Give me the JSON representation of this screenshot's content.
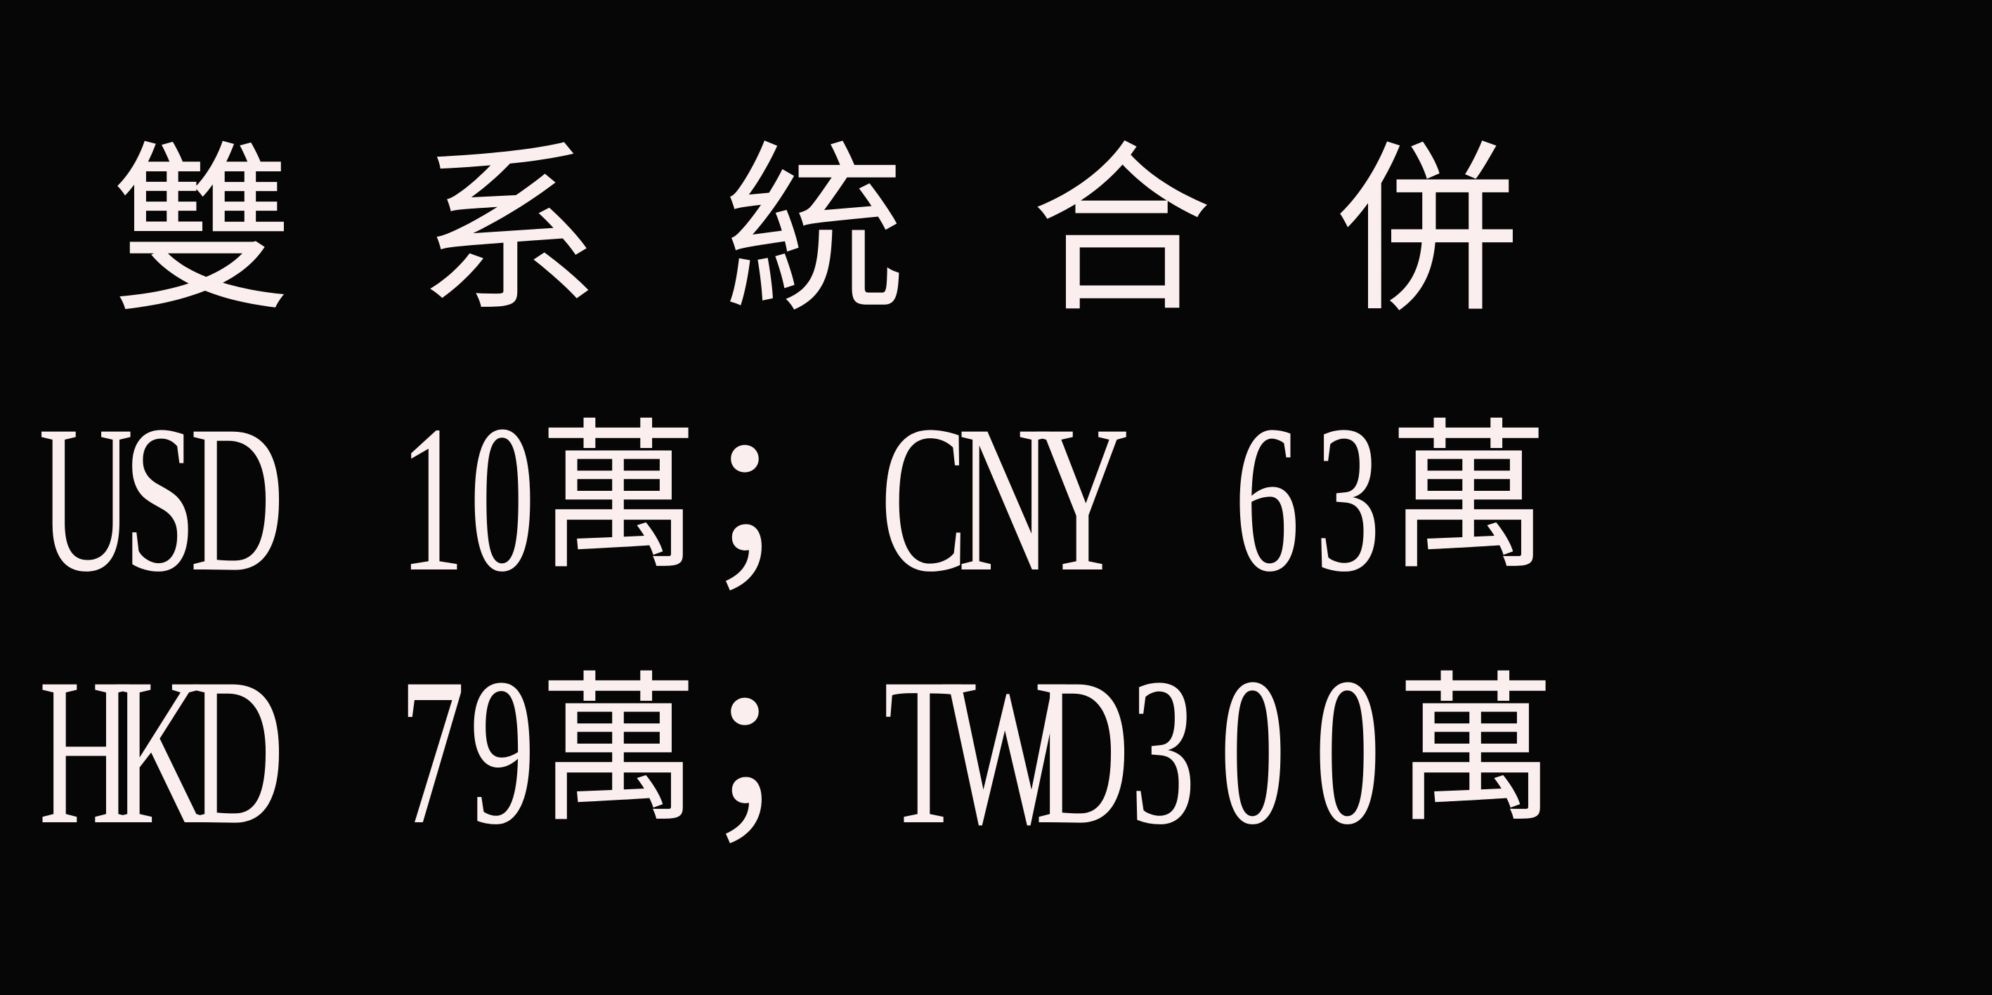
{
  "title_chars": [
    "雙",
    "系",
    "統",
    "合",
    "併"
  ],
  "row1": [
    "U",
    "S",
    "D",
    " ",
    "1",
    "0",
    "萬",
    "；",
    "C",
    "N",
    "Y",
    " ",
    "6",
    "3",
    "萬"
  ],
  "row2": [
    "H",
    "K",
    "D",
    " ",
    "7",
    "9",
    "萬",
    "；",
    "T",
    "W",
    "D",
    "3",
    "0",
    "0",
    "萬"
  ],
  "colors": {
    "background": "#060606",
    "text": "#fbeeee"
  }
}
